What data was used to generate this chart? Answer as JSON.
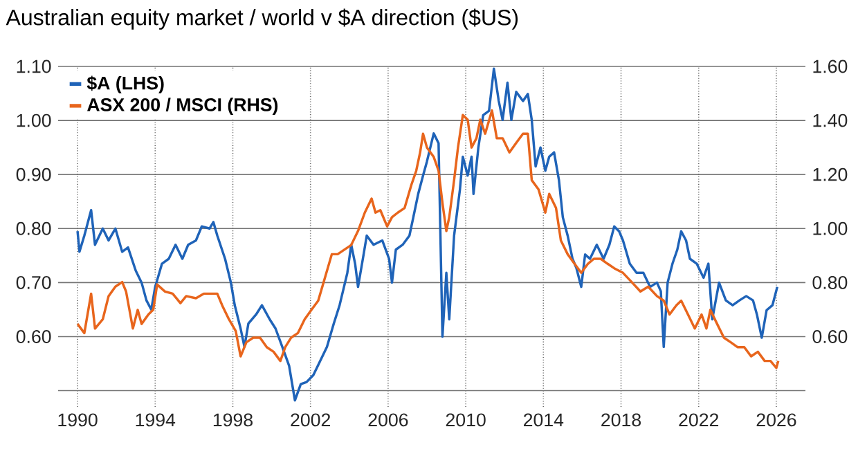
{
  "chart_data": {
    "type": "line",
    "title": "Australian equity market / world v $A direction ($US)",
    "xlim": [
      1989,
      2027.5
    ],
    "xticks": [
      1990,
      1994,
      1998,
      2002,
      2006,
      2010,
      2014,
      2018,
      2022,
      2026
    ],
    "ylim": [
      0.47,
      1.1
    ],
    "yticks": [
      {
        "value": 0.5,
        "label": null
      },
      {
        "value": 0.6,
        "label": "0.60"
      },
      {
        "value": 0.7,
        "label": "0.70"
      },
      {
        "value": 0.8,
        "label": "0.80"
      },
      {
        "value": 0.9,
        "label": "0.90"
      },
      {
        "value": 1.0,
        "label": "1.00"
      },
      {
        "value": 1.1,
        "label": "1.10"
      }
    ],
    "y2lim": [
      0.34,
      1.6
    ],
    "y2ticks": [
      {
        "value": 0.6,
        "label": "0.60"
      },
      {
        "value": 0.8,
        "label": "0.80"
      },
      {
        "value": 1.0,
        "label": "1.00"
      },
      {
        "value": 1.2,
        "label": "1.20"
      },
      {
        "value": 1.4,
        "label": "1.40"
      },
      {
        "value": 1.6,
        "label": "1.60"
      }
    ],
    "grid": true,
    "legend": "top left",
    "series": [
      {
        "name": "$A (LHS)",
        "color": "#1f63b8",
        "x": [
          1990.0,
          1990.1,
          1990.35,
          1990.7,
          1990.9,
          1991.3,
          1991.6,
          1991.95,
          1992.3,
          1992.6,
          1993.0,
          1993.3,
          1993.55,
          1993.8,
          1994.0,
          1994.35,
          1994.7,
          1995.05,
          1995.4,
          1995.7,
          1996.1,
          1996.4,
          1996.8,
          1997.0,
          1997.2,
          1997.6,
          1997.9,
          1998.1,
          1998.4,
          1998.6,
          1998.8,
          1999.2,
          1999.5,
          1999.9,
          2000.2,
          2000.55,
          2000.9,
          2001.2,
          2001.5,
          2001.8,
          2002.15,
          2002.5,
          2002.85,
          2003.2,
          2003.5,
          2003.9,
          2004.1,
          2004.3,
          2004.45,
          2004.7,
          2004.9,
          2005.25,
          2005.7,
          2006.05,
          2006.2,
          2006.4,
          2006.75,
          2007.1,
          2007.3,
          2007.55,
          2007.8,
          2008.0,
          2008.35,
          2008.6,
          2008.8,
          2009.0,
          2009.15,
          2009.4,
          2009.7,
          2009.85,
          2010.1,
          2010.3,
          2010.4,
          2010.65,
          2010.9,
          2011.2,
          2011.45,
          2011.7,
          2011.9,
          2012.15,
          2012.35,
          2012.6,
          2012.95,
          2013.2,
          2013.4,
          2013.6,
          2013.85,
          2014.1,
          2014.3,
          2014.55,
          2014.8,
          2015.0,
          2015.25,
          2015.5,
          2015.7,
          2015.95,
          2016.15,
          2016.4,
          2016.75,
          2017.1,
          2017.4,
          2017.65,
          2017.9,
          2018.1,
          2018.45,
          2018.8,
          2019.15,
          2019.5,
          2019.85,
          2020.05,
          2020.2,
          2020.4,
          2020.65,
          2020.9,
          2021.1,
          2021.35,
          2021.55,
          2021.9,
          2022.25,
          2022.5,
          2022.7,
          2023.05,
          2023.4,
          2023.75,
          2024.1,
          2024.45,
          2024.8,
          2025.0,
          2025.25,
          2025.5,
          2025.8,
          2026.05
        ],
        "values": [
          0.795,
          0.757,
          0.787,
          0.834,
          0.77,
          0.8,
          0.778,
          0.8,
          0.757,
          0.765,
          0.722,
          0.7,
          0.667,
          0.65,
          0.692,
          0.735,
          0.744,
          0.77,
          0.744,
          0.77,
          0.778,
          0.804,
          0.8,
          0.812,
          0.787,
          0.744,
          0.7,
          0.658,
          0.615,
          0.581,
          0.624,
          0.641,
          0.658,
          0.632,
          0.615,
          0.581,
          0.546,
          0.482,
          0.512,
          0.516,
          0.529,
          0.555,
          0.581,
          0.624,
          0.658,
          0.718,
          0.77,
          0.735,
          0.692,
          0.744,
          0.787,
          0.77,
          0.778,
          0.744,
          0.7,
          0.761,
          0.77,
          0.787,
          0.821,
          0.864,
          0.898,
          0.924,
          0.976,
          0.958,
          0.6,
          0.718,
          0.632,
          0.787,
          0.872,
          0.933,
          0.898,
          0.933,
          0.864,
          0.95,
          1.01,
          1.018,
          1.096,
          1.036,
          1.001,
          1.07,
          1.001,
          1.053,
          1.036,
          1.049,
          1.001,
          0.915,
          0.95,
          0.907,
          0.933,
          0.941,
          0.89,
          0.821,
          0.787,
          0.744,
          0.727,
          0.692,
          0.752,
          0.744,
          0.77,
          0.744,
          0.77,
          0.804,
          0.795,
          0.778,
          0.735,
          0.718,
          0.718,
          0.692,
          0.7,
          0.684,
          0.581,
          0.7,
          0.735,
          0.761,
          0.795,
          0.778,
          0.744,
          0.735,
          0.709,
          0.735,
          0.632,
          0.7,
          0.667,
          0.658,
          0.667,
          0.675,
          0.667,
          0.641,
          0.598,
          0.649,
          0.658,
          0.692
        ]
      },
      {
        "name": "ASX 200 / MSCI (RHS)",
        "color": "#e8651c",
        "axis": "y2",
        "x": [
          1990.0,
          1990.35,
          1990.7,
          1990.9,
          1991.3,
          1991.6,
          1991.95,
          1992.3,
          1992.5,
          1992.85,
          1993.1,
          1993.3,
          1993.65,
          1993.9,
          1994.1,
          1994.5,
          1994.9,
          1995.3,
          1995.6,
          1996.1,
          1996.5,
          1996.9,
          1997.2,
          1997.45,
          1997.8,
          1998.15,
          1998.4,
          1998.7,
          1999.05,
          1999.4,
          1999.75,
          2000.1,
          2000.45,
          2000.7,
          2001.0,
          2001.35,
          2001.7,
          2002.05,
          2002.4,
          2002.75,
          2003.1,
          2003.4,
          2003.75,
          2004.1,
          2004.45,
          2004.8,
          2005.15,
          2005.35,
          2005.6,
          2005.95,
          2006.2,
          2006.5,
          2006.85,
          2007.2,
          2007.45,
          2007.65,
          2007.8,
          2008.0,
          2008.35,
          2008.6,
          2008.8,
          2009.0,
          2009.15,
          2009.4,
          2009.6,
          2009.85,
          2010.1,
          2010.3,
          2010.55,
          2010.75,
          2011.0,
          2011.35,
          2011.6,
          2011.9,
          2012.25,
          2012.6,
          2012.95,
          2013.2,
          2013.4,
          2013.75,
          2014.1,
          2014.3,
          2014.65,
          2014.9,
          2015.25,
          2015.6,
          2015.95,
          2016.3,
          2016.6,
          2016.95,
          2017.3,
          2017.65,
          2018.1,
          2018.55,
          2019.0,
          2019.4,
          2019.85,
          2020.2,
          2020.5,
          2020.85,
          2021.1,
          2021.45,
          2021.8,
          2022.15,
          2022.4,
          2022.6,
          2022.95,
          2023.3,
          2023.65,
          2024.0,
          2024.35,
          2024.7,
          2025.05,
          2025.4,
          2025.7,
          2026.0,
          2026.1
        ],
        "values": [
          0.647,
          0.613,
          0.759,
          0.63,
          0.664,
          0.75,
          0.785,
          0.802,
          0.767,
          0.63,
          0.699,
          0.647,
          0.682,
          0.7,
          0.793,
          0.767,
          0.759,
          0.724,
          0.75,
          0.742,
          0.759,
          0.759,
          0.759,
          0.716,
          0.664,
          0.621,
          0.527,
          0.579,
          0.596,
          0.596,
          0.561,
          0.544,
          0.51,
          0.561,
          0.596,
          0.613,
          0.664,
          0.699,
          0.733,
          0.819,
          0.905,
          0.905,
          0.922,
          0.939,
          0.991,
          1.059,
          1.111,
          1.059,
          1.068,
          1.008,
          1.042,
          1.059,
          1.076,
          1.162,
          1.214,
          1.282,
          1.351,
          1.3,
          1.265,
          1.214,
          1.094,
          0.991,
          1.042,
          1.179,
          1.3,
          1.42,
          1.403,
          1.3,
          1.334,
          1.403,
          1.351,
          1.437,
          1.334,
          1.334,
          1.282,
          1.317,
          1.351,
          1.351,
          1.179,
          1.145,
          1.059,
          1.128,
          1.076,
          0.956,
          0.905,
          0.87,
          0.836,
          0.87,
          0.888,
          0.888,
          0.87,
          0.853,
          0.836,
          0.802,
          0.767,
          0.785,
          0.75,
          0.733,
          0.682,
          0.716,
          0.733,
          0.682,
          0.63,
          0.682,
          0.63,
          0.699,
          0.647,
          0.596,
          0.579,
          0.561,
          0.561,
          0.527,
          0.544,
          0.51,
          0.51,
          0.484,
          0.51
        ]
      }
    ]
  }
}
